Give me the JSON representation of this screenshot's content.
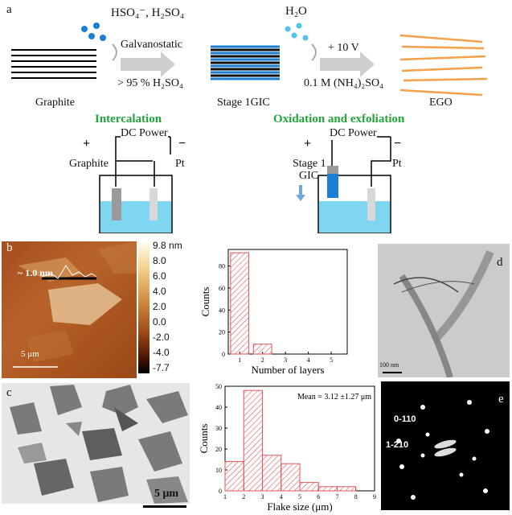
{
  "panel_a": {
    "label": "a",
    "reagent_acid": "HSO₄⁻, H₂SO₄",
    "reagent_water": "H₂O",
    "step1_top": "Galvanostatic",
    "step1_bottom": "> 95 % H₂SO₄",
    "step2_top": "+ 10 V",
    "step2_bottom": "0.1 M (NH₄)₂SO₄",
    "graphite_label": "Graphite",
    "gic_label": "Stage 1GIC",
    "ego_label": "EGO",
    "intercalation_title": "Intercalation",
    "oxidation_title": "Oxidation and exfoliation",
    "dc_power": "DC Power",
    "plus": "+",
    "minus": "−",
    "anode_left": "Graphite",
    "cathode": "Pt",
    "anode_right_line1": "Stage 1",
    "anode_right_line2": "GIC"
  },
  "panel_b": {
    "label": "b",
    "height_annotation": "~ 1.0 nm",
    "scale_bar": "5 μm",
    "colorbar_ticks": [
      "9.8 nm",
      "8.0",
      "6.0",
      "4.0",
      "2.0",
      "0.0",
      "-2.0",
      "-4.0",
      "-7.7"
    ]
  },
  "panel_c": {
    "label": "c",
    "scale_bar": "5 μm"
  },
  "panel_d": {
    "label": "d",
    "scale_bar": "100 nm"
  },
  "panel_e": {
    "label": "e",
    "spot1": "0-110",
    "spot2": "1-210"
  },
  "chart_data": [
    {
      "type": "bar",
      "categories": [
        "1",
        "2",
        "3",
        "4",
        "5"
      ],
      "values": [
        92,
        9,
        0,
        0,
        0
      ],
      "xlabel": "Number of layers",
      "ylabel": "Counts",
      "ylim": [
        0,
        95
      ],
      "yticks": [
        "0",
        "20",
        "40",
        "60",
        "80"
      ],
      "xticks": [
        "1",
        "2",
        "3",
        "4",
        "5"
      ],
      "color": "#e0555a"
    },
    {
      "type": "bar",
      "categories": [
        "1-2",
        "2-3",
        "3-4",
        "4-5",
        "5-6",
        "6-7",
        "7-8"
      ],
      "values": [
        14,
        48,
        17,
        13,
        4,
        2,
        2
      ],
      "xlabel": "Flake size (μm)",
      "ylabel": "Counts",
      "ylim": [
        0,
        50
      ],
      "yticks": [
        "0",
        "10",
        "20",
        "30",
        "40",
        "50"
      ],
      "xticks": [
        "1",
        "2",
        "3",
        "4",
        "5",
        "6",
        "7",
        "8",
        "9"
      ],
      "annotation": "Mean = 3.12 ±1.27 μm",
      "color": "#e0555a"
    }
  ]
}
